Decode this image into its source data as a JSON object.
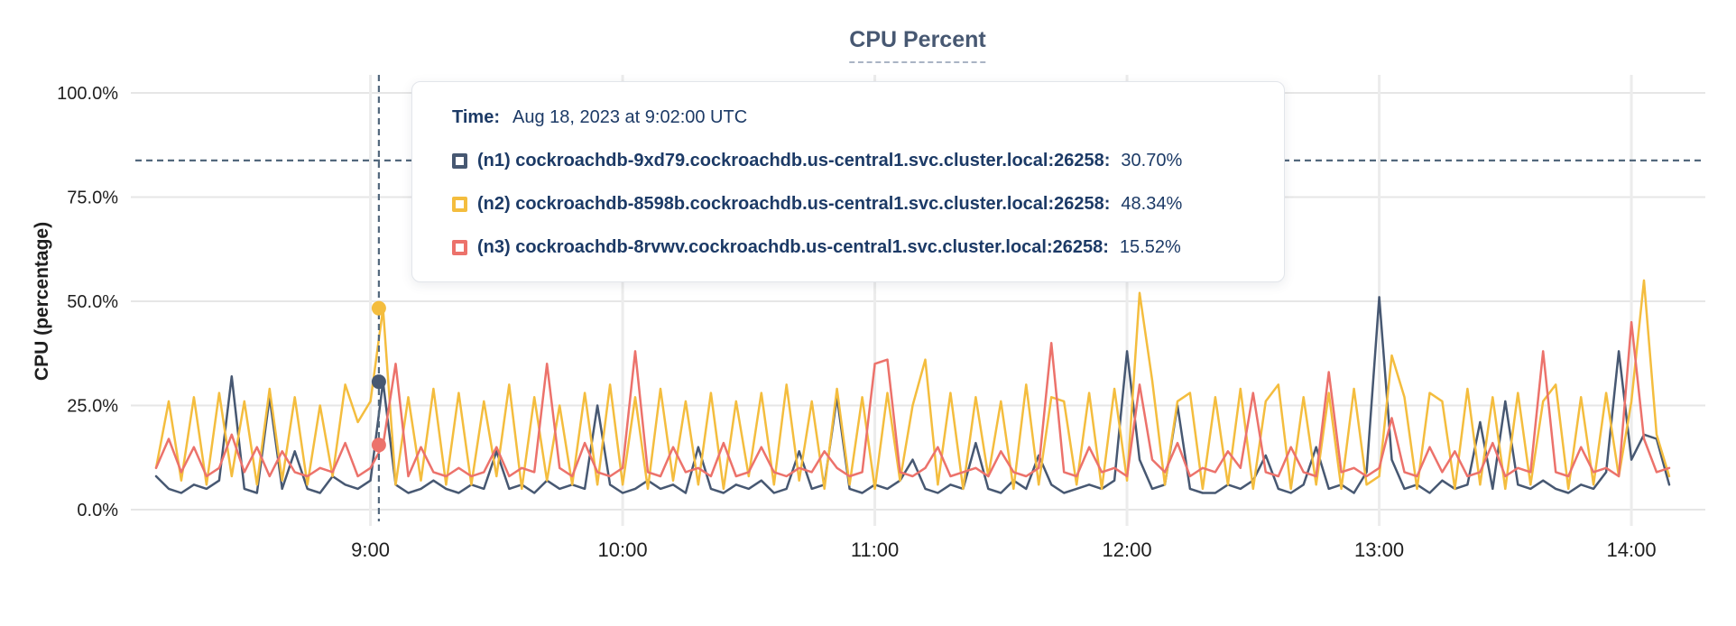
{
  "title": "CPU Percent",
  "colors": {
    "n1": "#475872",
    "n2": "#f4bd3e",
    "n3": "#ec726b",
    "grid_horizontal": "#e6e6e6",
    "grid_vertical": "#ececec",
    "axis_text": "#1f1f1f",
    "title_text": "#475872",
    "crosshair": "#53687d",
    "tooltip_text": "#1c3a66"
  },
  "tooltip": {
    "time_label": "Time:",
    "time_value": "Aug 18, 2023 at 9:02:00 UTC",
    "series": [
      {
        "id": "n1",
        "label": "(n1) cockroachdb-9xd79.cockroachdb.us-central1.svc.cluster.local:26258:",
        "value": "30.70%"
      },
      {
        "id": "n2",
        "label": "(n2) cockroachdb-8598b.cockroachdb.us-central1.svc.cluster.local:26258:",
        "value": "48.34%"
      },
      {
        "id": "n3",
        "label": "(n3) cockroachdb-8rvwv.cockroachdb.us-central1.svc.cluster.local:26258:",
        "value": "15.52%"
      }
    ]
  },
  "chart_data": {
    "type": "line",
    "title": "CPU Percent",
    "xlabel": "",
    "ylabel": "CPU (percentage)",
    "x_unit": "time of day (UTC)",
    "x_start_minute": 489,
    "x_step_minutes": 3,
    "x_range_labels": [
      "8:09",
      "14:09"
    ],
    "ylim": [
      0,
      104
    ],
    "grid": true,
    "legend_position": "tooltip",
    "y_ticks": [
      {
        "value": 0,
        "label": "0.0%"
      },
      {
        "value": 25,
        "label": "25.0%"
      },
      {
        "value": 50,
        "label": "50.0%"
      },
      {
        "value": 75,
        "label": "75.0%"
      },
      {
        "value": 100,
        "label": "100.0%"
      }
    ],
    "x_ticks": [
      {
        "minute": 540,
        "label": "9:00"
      },
      {
        "minute": 600,
        "label": "10:00"
      },
      {
        "minute": 660,
        "label": "11:00"
      },
      {
        "minute": 720,
        "label": "12:00"
      },
      {
        "minute": 780,
        "label": "13:00"
      },
      {
        "minute": 840,
        "label": "14:00"
      }
    ],
    "hover": {
      "minute": 542,
      "time": "Aug 18, 2023 at 9:02:00 UTC",
      "cursor_percent": 83.8,
      "values": {
        "n1": 30.7,
        "n2": 48.34,
        "n3": 15.52
      }
    },
    "series": [
      {
        "id": "n1",
        "name": "cockroachdb-9xd79.cockroachdb.us-central1.svc.cluster.local:26258",
        "color": "#475872",
        "values": [
          8,
          5,
          4,
          6,
          5,
          7,
          32,
          5,
          4,
          27,
          5,
          14,
          5,
          4,
          8,
          6,
          5,
          7,
          30.7,
          6,
          4,
          5,
          7,
          5,
          4,
          6,
          5,
          14,
          5,
          6,
          4,
          7,
          5,
          6,
          5,
          25,
          6,
          4,
          5,
          7,
          5,
          6,
          4,
          15,
          5,
          4,
          6,
          5,
          7,
          4,
          5,
          14,
          5,
          6,
          27,
          5,
          4,
          6,
          5,
          7,
          12,
          5,
          4,
          6,
          5,
          16,
          5,
          4,
          7,
          5,
          13,
          6,
          4,
          5,
          6,
          5,
          7,
          38,
          12,
          5,
          6,
          25,
          5,
          4,
          4,
          6,
          5,
          7,
          13,
          5,
          4,
          6,
          15,
          5,
          6,
          4,
          9,
          51,
          12,
          5,
          6,
          4,
          7,
          5,
          6,
          21,
          5,
          26,
          6,
          5,
          7,
          5,
          4,
          6,
          5,
          9,
          38,
          12,
          18,
          17,
          6
        ]
      },
      {
        "id": "n2",
        "name": "cockroachdb-8598b.cockroachdb.us-central1.svc.cluster.local:26258",
        "color": "#f4bd3e",
        "values": [
          10,
          26,
          7,
          27,
          6,
          28,
          8,
          26,
          6,
          29,
          7,
          27,
          6,
          25,
          8,
          30,
          21,
          26,
          48.3,
          6,
          27,
          7,
          29,
          6,
          28,
          6,
          26,
          8,
          30,
          5,
          27,
          7,
          25,
          6,
          28,
          6,
          30,
          6,
          27,
          5,
          29,
          7,
          26,
          6,
          28,
          5,
          26,
          8,
          28,
          6,
          30,
          7,
          26,
          5,
          29,
          6,
          27,
          5,
          28,
          7,
          25,
          36,
          6,
          28,
          5,
          27,
          8,
          26,
          5,
          30,
          6,
          27,
          26,
          6,
          28,
          5,
          29,
          7,
          52,
          31,
          6,
          26,
          28,
          5,
          27,
          6,
          29,
          5,
          26,
          30,
          5,
          27,
          6,
          28,
          5,
          29,
          6,
          8,
          37,
          27,
          5,
          28,
          26,
          5,
          29,
          6,
          27,
          5,
          28,
          6,
          26,
          30,
          5,
          27,
          6,
          28,
          8,
          26,
          55,
          18,
          8
        ]
      },
      {
        "id": "n3",
        "name": "cockroachdb-8rvwv.cockroachdb.us-central1.svc.cluster.local:26258",
        "color": "#ec726b",
        "values": [
          10,
          17,
          9,
          15,
          8,
          10,
          18,
          9,
          15,
          8,
          14,
          9,
          8,
          10,
          9,
          16,
          8,
          10,
          15.5,
          35,
          8,
          15,
          9,
          8,
          10,
          8,
          9,
          15,
          8,
          10,
          9,
          35,
          10,
          8,
          16,
          9,
          8,
          10,
          38,
          9,
          8,
          15,
          9,
          10,
          8,
          16,
          8,
          9,
          15,
          9,
          8,
          10,
          9,
          14,
          10,
          8,
          9,
          35,
          36,
          9,
          8,
          10,
          15,
          8,
          9,
          10,
          8,
          14,
          9,
          8,
          10,
          40,
          9,
          8,
          15,
          9,
          10,
          8,
          30,
          12,
          9,
          16,
          8,
          10,
          9,
          14,
          10,
          28,
          9,
          8,
          15,
          9,
          8,
          33,
          9,
          10,
          8,
          10,
          22,
          9,
          8,
          15,
          9,
          14,
          8,
          9,
          16,
          8,
          10,
          9,
          38,
          9,
          8,
          15,
          9,
          10,
          8,
          45,
          17,
          9,
          10
        ]
      }
    ]
  }
}
